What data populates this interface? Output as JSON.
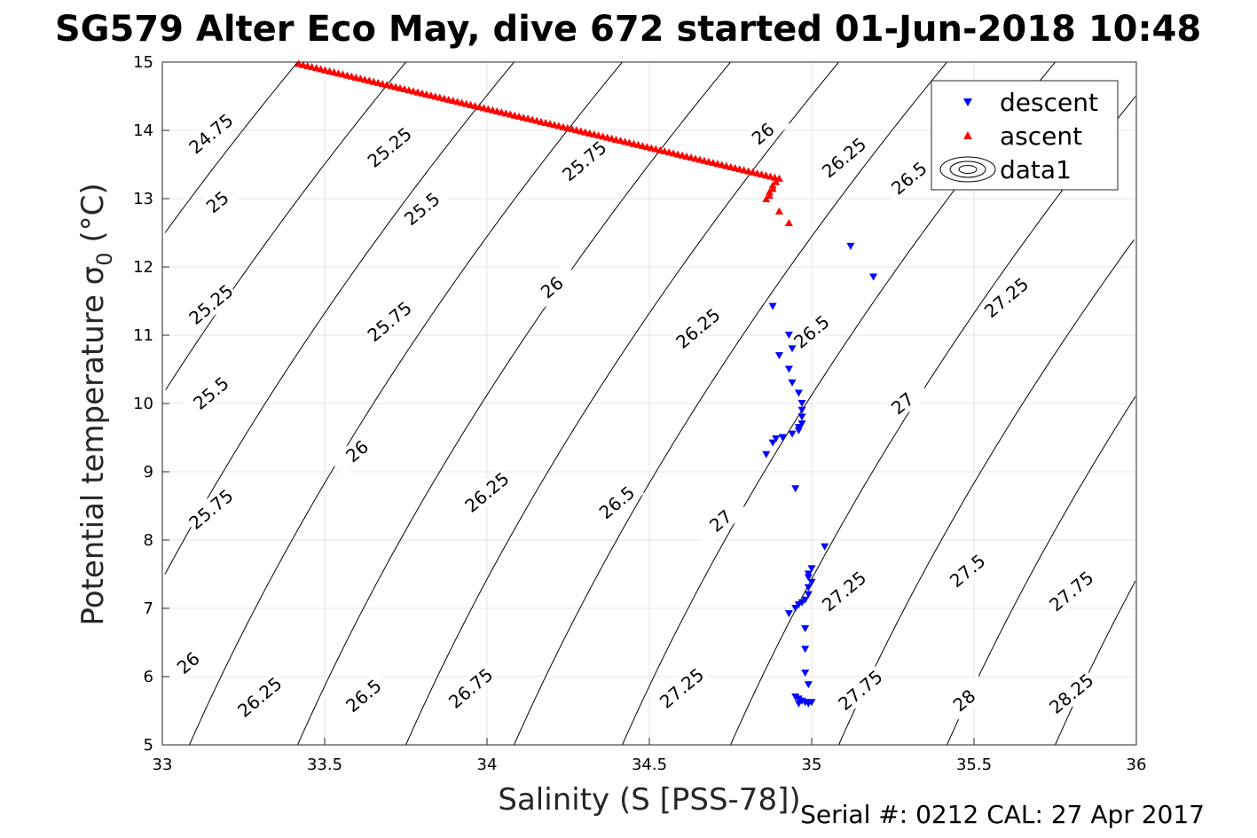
{
  "chart_data": {
    "type": "scatter",
    "title": "SG579 Alter Eco May, dive 672 started 01-Jun-2018 10:48",
    "xlabel": "Salinity (S [PSS-78])",
    "ylabel_main": "Potential temperature σ",
    "ylabel_sub": "0",
    "ylabel_unit": " (°C)",
    "footer": "Serial #: 0212  CAL: 27 Apr 2017",
    "xlim": [
      33,
      36
    ],
    "ylim": [
      5,
      15
    ],
    "xticks": [
      33,
      33.5,
      34,
      34.5,
      35,
      35.5,
      36
    ],
    "xtick_labels": [
      "33",
      "33.5",
      "34",
      "34.5",
      "35",
      "35.5",
      "36"
    ],
    "yticks": [
      5,
      6,
      7,
      8,
      9,
      10,
      11,
      12,
      13,
      14,
      15
    ],
    "ytick_labels": [
      "5",
      "6",
      "7",
      "8",
      "9",
      "10",
      "11",
      "12",
      "13",
      "14",
      "15"
    ],
    "grid": true,
    "legend_position": "top-right",
    "series": [
      {
        "name": "descent",
        "marker": "down-triangle",
        "color": "#0000ff",
        "points": [
          [
            35.12,
            12.3
          ],
          [
            35.19,
            11.85
          ],
          [
            34.88,
            11.42
          ],
          [
            34.93,
            11.0
          ],
          [
            34.94,
            10.8
          ],
          [
            34.9,
            10.7
          ],
          [
            34.93,
            10.5
          ],
          [
            34.94,
            10.3
          ],
          [
            34.96,
            10.15
          ],
          [
            34.97,
            10.0
          ],
          [
            34.97,
            9.9
          ],
          [
            34.97,
            9.8
          ],
          [
            34.97,
            9.7
          ],
          [
            34.96,
            9.65
          ],
          [
            34.96,
            9.6
          ],
          [
            34.94,
            9.55
          ],
          [
            34.91,
            9.5
          ],
          [
            34.89,
            9.48
          ],
          [
            34.88,
            9.42
          ],
          [
            34.86,
            9.25
          ],
          [
            34.95,
            8.75
          ],
          [
            35.04,
            7.9
          ],
          [
            35.0,
            7.58
          ],
          [
            34.99,
            7.5
          ],
          [
            34.99,
            7.45
          ],
          [
            35.0,
            7.38
          ],
          [
            34.99,
            7.3
          ],
          [
            34.99,
            7.2
          ],
          [
            34.98,
            7.12
          ],
          [
            34.97,
            7.08
          ],
          [
            34.96,
            7.05
          ],
          [
            34.95,
            7.0
          ],
          [
            34.93,
            6.92
          ],
          [
            34.98,
            6.7
          ],
          [
            34.98,
            6.4
          ],
          [
            34.98,
            6.05
          ],
          [
            34.99,
            5.88
          ],
          [
            34.95,
            5.7
          ],
          [
            34.96,
            5.67
          ],
          [
            34.97,
            5.64
          ],
          [
            34.98,
            5.62
          ],
          [
            34.99,
            5.6
          ],
          [
            35.0,
            5.62
          ],
          [
            34.96,
            5.6
          ]
        ]
      },
      {
        "name": "ascent",
        "marker": "up-triangle",
        "color": "#ff0000",
        "line_from": [
          33.42,
          14.98
        ],
        "line_to": [
          34.9,
          13.3
        ],
        "line_count": 110,
        "points": [
          [
            34.89,
            13.25
          ],
          [
            34.88,
            13.2
          ],
          [
            34.88,
            13.15
          ],
          [
            34.87,
            13.1
          ],
          [
            34.87,
            13.05
          ],
          [
            34.86,
            13.0
          ],
          [
            34.9,
            12.82
          ],
          [
            34.93,
            12.65
          ]
        ]
      },
      {
        "name": "data1",
        "type": "contour",
        "color": "#000000"
      }
    ],
    "contour_levels": [
      {
        "level": 24.75,
        "label": "24.75"
      },
      {
        "level": 25.0,
        "label": "25"
      },
      {
        "level": 25.25,
        "label": "25.25"
      },
      {
        "level": 25.5,
        "label": "25.5"
      },
      {
        "level": 25.75,
        "label": "25.75"
      },
      {
        "level": 26.0,
        "label": "26"
      },
      {
        "level": 26.25,
        "label": "26.25"
      },
      {
        "level": 26.5,
        "label": "26.5"
      },
      {
        "level": 26.75,
        "label": "26.75"
      },
      {
        "level": 27.0,
        "label": "27"
      },
      {
        "level": 27.25,
        "label": "27.25"
      },
      {
        "level": 27.5,
        "label": "27.5"
      },
      {
        "level": 27.75,
        "label": "27.75"
      },
      {
        "level": 28.0,
        "label": "28"
      },
      {
        "level": 28.25,
        "label": "28.25"
      }
    ],
    "contour_label_points": [
      {
        "s": 33.15,
        "t": 13.95
      },
      {
        "s": 33.17,
        "t": 12.95
      },
      {
        "s": 33.15,
        "t": 11.45
      },
      {
        "s": 33.15,
        "t": 10.15
      },
      {
        "s": 33.15,
        "t": 8.45
      },
      {
        "s": 33.08,
        "t": 6.2
      },
      {
        "s": 33.7,
        "t": 13.75
      },
      {
        "s": 33.8,
        "t": 12.85
      },
      {
        "s": 33.7,
        "t": 11.2
      },
      {
        "s": 33.6,
        "t": 9.3
      },
      {
        "s": 33.3,
        "t": 5.7
      },
      {
        "s": 34.3,
        "t": 13.55
      },
      {
        "s": 34.2,
        "t": 11.7
      },
      {
        "s": 34.0,
        "t": 8.7
      },
      {
        "s": 33.62,
        "t": 5.72
      },
      {
        "s": 34.85,
        "t": 13.95
      },
      {
        "s": 34.65,
        "t": 11.1
      },
      {
        "s": 34.4,
        "t": 8.55
      },
      {
        "s": 33.95,
        "t": 5.83
      },
      {
        "s": 35.1,
        "t": 13.6
      },
      {
        "s": 35.0,
        "t": 11.05
      },
      {
        "s": 34.72,
        "t": 8.28
      },
      {
        "s": 34.6,
        "t": 5.83
      },
      {
        "s": 35.3,
        "t": 13.3
      },
      {
        "s": 35.28,
        "t": 10.0
      },
      {
        "s": 35.1,
        "t": 7.25
      },
      {
        "s": 35.15,
        "t": 5.8
      },
      {
        "s": 35.6,
        "t": 11.55
      },
      {
        "s": 35.48,
        "t": 7.55
      },
      {
        "s": 35.47,
        "t": 5.65
      },
      {
        "s": 35.8,
        "t": 7.25
      },
      {
        "s": 35.8,
        "t": 5.75
      }
    ],
    "contour_label_texts": [
      "24.75",
      "25",
      "25.25",
      "25.5",
      "25.75",
      "26",
      "25.25",
      "25.5",
      "25.75",
      "26",
      "26.25",
      "25.75",
      "26",
      "26.25",
      "26.5",
      "26",
      "26.25",
      "26.5",
      "26.75",
      "26.25",
      "26.5",
      "27",
      "27.25",
      "26.5",
      "27",
      "27.25",
      "27.75",
      "27.25",
      "27.5",
      "28",
      "27.75",
      "28.25"
    ]
  }
}
